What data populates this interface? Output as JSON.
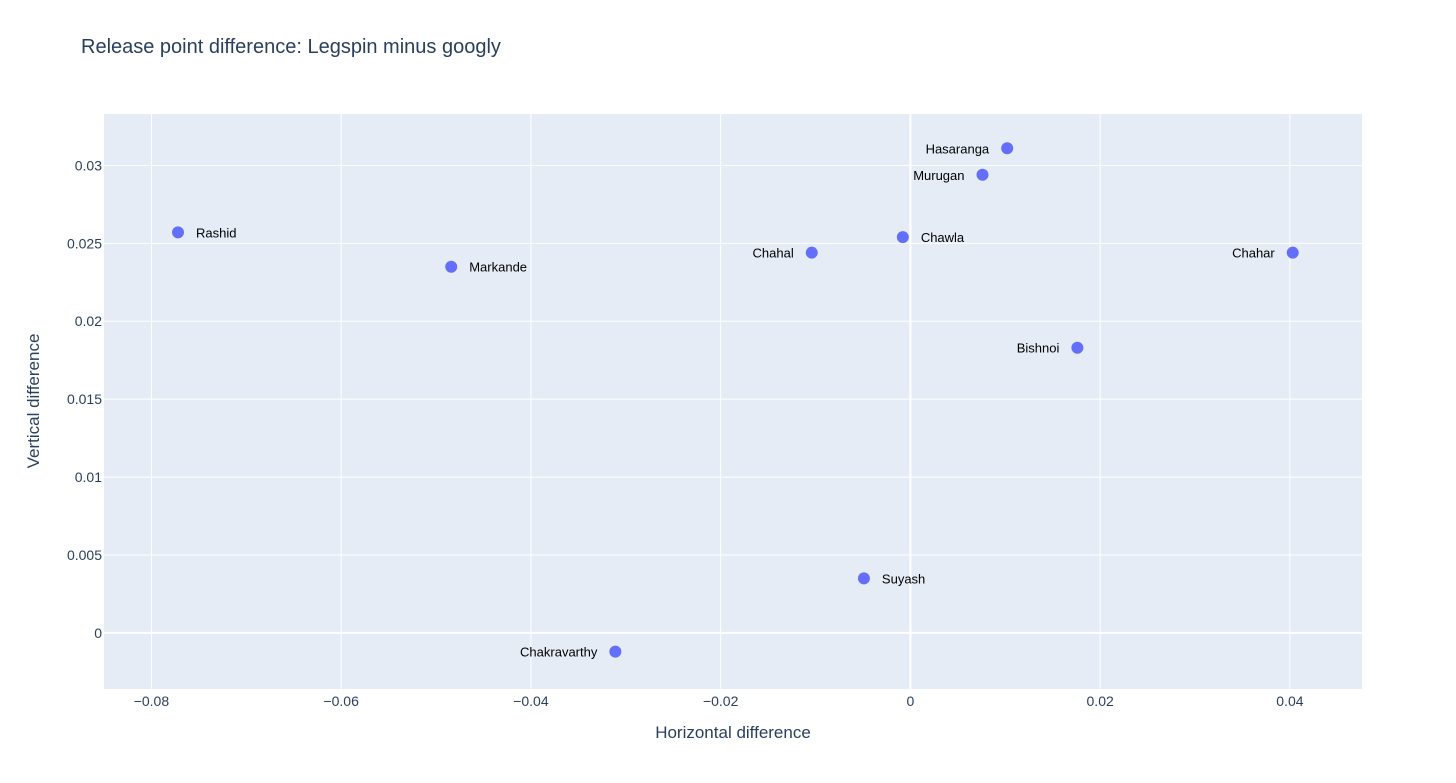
{
  "chart_data": {
    "type": "scatter",
    "title": "Release point difference: Legspin minus googly",
    "xlabel": "Horizontal difference",
    "ylabel": "Vertical difference",
    "xlim": [
      -0.085,
      0.0476
    ],
    "ylim": [
      -0.0036,
      0.0333
    ],
    "xticks": [
      -0.08,
      -0.06,
      -0.04,
      -0.02,
      0,
      0.02,
      0.04
    ],
    "xtick_labels": [
      "−0.08",
      "−0.06",
      "−0.04",
      "−0.02",
      "0",
      "0.02",
      "0.04"
    ],
    "yticks": [
      0,
      0.005,
      0.01,
      0.015,
      0.02,
      0.025,
      0.03
    ],
    "ytick_labels": [
      "0",
      "0.005",
      "0.01",
      "0.015",
      "0.02",
      "0.025",
      "0.03"
    ],
    "grid": true,
    "colors": {
      "marker": "#636efa",
      "plot_bg": "#e5ecf6",
      "grid": "#ffffff",
      "text": "#2a3f5f"
    },
    "points": [
      {
        "label": "Rashid",
        "x": -0.0772,
        "y": 0.0257,
        "label_side": "right"
      },
      {
        "label": "Markande",
        "x": -0.0484,
        "y": 0.0235,
        "label_side": "right"
      },
      {
        "label": "Chahal",
        "x": -0.0104,
        "y": 0.0244,
        "label_side": "left"
      },
      {
        "label": "Chawla",
        "x": -0.0008,
        "y": 0.0254,
        "label_side": "right"
      },
      {
        "label": "Hasaranga",
        "x": 0.0102,
        "y": 0.0311,
        "label_side": "left"
      },
      {
        "label": "Murugan",
        "x": 0.0076,
        "y": 0.0294,
        "label_side": "left"
      },
      {
        "label": "Chahar",
        "x": 0.0403,
        "y": 0.0244,
        "label_side": "left"
      },
      {
        "label": "Bishnoi",
        "x": 0.0176,
        "y": 0.0183,
        "label_side": "left"
      },
      {
        "label": "Suyash",
        "x": -0.0049,
        "y": 0.0035,
        "label_side": "right"
      },
      {
        "label": "Chakravarthy",
        "x": -0.0311,
        "y": -0.0012,
        "label_side": "left"
      }
    ]
  }
}
